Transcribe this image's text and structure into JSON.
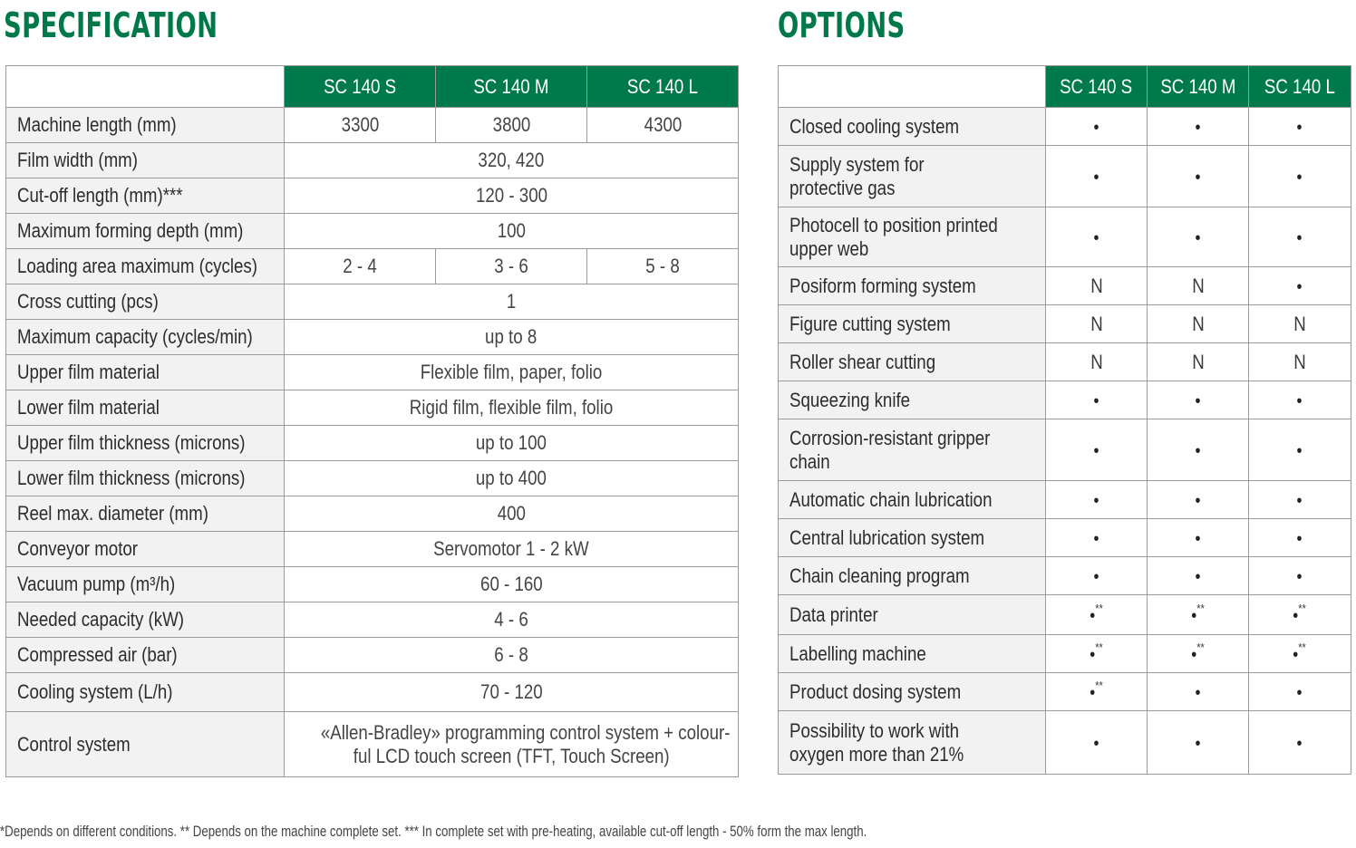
{
  "headings": {
    "spec": "SPECIFICATION",
    "options": "OPTIONS"
  },
  "models": [
    "SC 140 S",
    "SC 140 M",
    "SC 140 L"
  ],
  "spec": {
    "rows": [
      {
        "label": "Machine length (mm)",
        "values": [
          "3300",
          "3800",
          "4300"
        ]
      },
      {
        "label": "Film width (mm)",
        "value": "320, 420"
      },
      {
        "label": "Cut-off length (mm)***",
        "value": "120 - 300"
      },
      {
        "label": "Maximum forming depth (mm)",
        "value": "100"
      },
      {
        "label": "Loading area maximum (cycles)",
        "values": [
          "2 - 4",
          "3 - 6",
          "5 - 8"
        ]
      },
      {
        "label": "Cross cutting (pcs)",
        "value": "1"
      },
      {
        "label": "Maximum capacity (cycles/min)",
        "value": "up to 8"
      },
      {
        "label": "Upper film material",
        "value": "Flexible film, paper, folio"
      },
      {
        "label": "Lower film material",
        "value": "Rigid film, flexible film, folio"
      },
      {
        "label": "Upper film thickness (microns)",
        "value": "up to 100"
      },
      {
        "label": "Lower film  thickness (microns)",
        "value": "up to 400"
      },
      {
        "label": "Reel max. diameter (mm)",
        "value": "400"
      },
      {
        "label": "Conveyor motor",
        "value": "Servomotor 1 - 2 kW"
      },
      {
        "label": "Vacuum pump (m³/h)",
        "value": "60 - 160"
      },
      {
        "label": "Needed capacity (kW)",
        "value": "4 - 6"
      },
      {
        "label": "Compressed air (bar)",
        "value": "6 - 8"
      },
      {
        "label": "Cooling system (L/h)",
        "value": "70 - 120"
      },
      {
        "label": "Control system",
        "value_lines": [
          "«Allen-Bradley» programming control system + colour-",
          "ful LCD touch screen (TFT, Touch Screen)"
        ]
      }
    ]
  },
  "options": {
    "rows": [
      {
        "lines": [
          "Closed cooling system"
        ],
        "marks": [
          "•",
          "•",
          "•"
        ]
      },
      {
        "lines": [
          "Supply system for",
          "protective gas"
        ],
        "marks": [
          "•",
          "•",
          "•"
        ]
      },
      {
        "lines": [
          "Photocell to position printed",
          "upper web"
        ],
        "marks": [
          "•",
          "•",
          "•"
        ]
      },
      {
        "lines": [
          "Posiform forming system"
        ],
        "marks": [
          "N",
          "N",
          "•"
        ]
      },
      {
        "lines": [
          "Figure cutting system"
        ],
        "marks": [
          "N",
          "N",
          "N"
        ]
      },
      {
        "lines": [
          "Roller shear cutting"
        ],
        "marks": [
          "N",
          "N",
          "N"
        ]
      },
      {
        "lines": [
          "Squeezing knife"
        ],
        "marks": [
          "•",
          "•",
          "•"
        ]
      },
      {
        "lines": [
          "Corrosion-resistant gripper",
          "chain"
        ],
        "marks": [
          "•",
          "•",
          "•"
        ]
      },
      {
        "lines": [
          "Automatic chain lubrication"
        ],
        "marks": [
          "•",
          "•",
          "•"
        ]
      },
      {
        "lines": [
          "Central lubrication system"
        ],
        "marks": [
          "•",
          "•",
          "•"
        ]
      },
      {
        "lines": [
          "Chain cleaning program"
        ],
        "marks": [
          "•",
          "•",
          "•"
        ]
      },
      {
        "lines": [
          "Data printer"
        ],
        "marks": [
          "•**",
          "•**",
          "•**"
        ]
      },
      {
        "lines": [
          "Labelling machine"
        ],
        "marks": [
          "•**",
          "•**",
          "•**"
        ]
      },
      {
        "lines": [
          "Product dosing system"
        ],
        "marks": [
          "•**",
          "•",
          "•"
        ]
      },
      {
        "lines": [
          "Possibility to work with",
          "oxygen more than 21%"
        ],
        "marks": [
          "•",
          "•",
          "•"
        ]
      }
    ]
  },
  "footnote": "*Depends on different conditions.  ** Depends on the machine complete set.   *** In complete set with pre-heating, available cut-off length - 50% form the max length.",
  "colors": {
    "accent": "#007a4d",
    "label_bg": "#f2f2f2",
    "border": "#9b9b9b"
  }
}
